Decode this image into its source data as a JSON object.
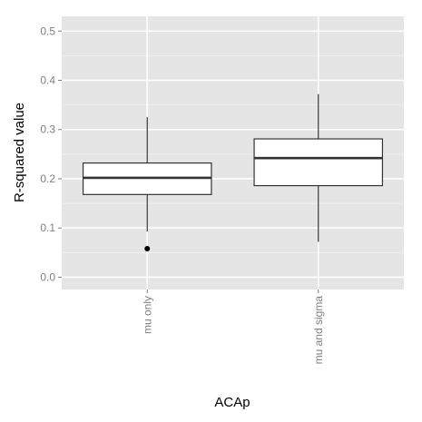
{
  "chart_data": {
    "type": "boxplot",
    "title": "",
    "xlabel": "ACAp",
    "ylabel": "R-squared value",
    "ylim": [
      -0.025,
      0.53
    ],
    "yticks": [
      0.0,
      0.1,
      0.2,
      0.3,
      0.4,
      0.5
    ],
    "ytick_labels": [
      "0.0",
      "0.1",
      "0.2",
      "0.3",
      "0.4",
      "0.5"
    ],
    "categories": [
      "mu only",
      "mu and sigma"
    ],
    "boxes": [
      {
        "category": "mu only",
        "whisker_low": 0.093,
        "q1": 0.168,
        "median": 0.202,
        "q3": 0.232,
        "whisker_high": 0.325,
        "outliers": [
          0.058
        ]
      },
      {
        "category": "mu and sigma",
        "whisker_low": 0.072,
        "q1": 0.186,
        "median": 0.242,
        "q3": 0.281,
        "whisker_high": 0.372,
        "outliers": []
      }
    ],
    "grid": true,
    "legend": "none",
    "colors": {
      "panel": "#e5e5e5",
      "grid_major": "#ffffff",
      "grid_minor": "#f2f2f2",
      "box_fill": "#ffffff",
      "box_line": "#333333",
      "tick_text": "#7f7f7f"
    }
  }
}
